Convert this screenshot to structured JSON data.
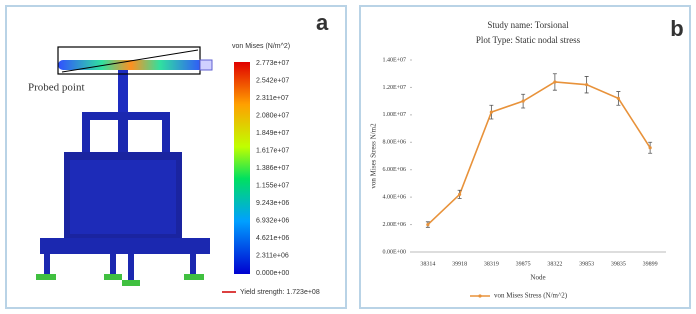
{
  "panel_a": {
    "label": "a",
    "annotation": "Probed point",
    "colorbar_title": "von Mises (N/m^2)",
    "colorbar_labels": [
      "2.773e+07",
      "2.542e+07",
      "2.311e+07",
      "2.080e+07",
      "1.849e+07",
      "1.617e+07",
      "1.386e+07",
      "1.155e+07",
      "9.243e+06",
      "6.932e+06",
      "4.621e+06",
      "2.311e+06",
      "0.000e+00"
    ],
    "yield_note": "Yield strength: 1.723e+08"
  },
  "chart_data": {
    "type": "line",
    "panel_label": "b",
    "title": "Study name: Torsional",
    "subtitle": "Plot Type: Static nodal stress",
    "x_label": "Node",
    "y_label": "von Mises Stress N/m2",
    "categories": [
      "38314",
      "39918",
      "38319",
      "39875",
      "38322",
      "39853",
      "39835",
      "39899"
    ],
    "series": [
      {
        "name": "von Mises Stress (N/m^2)",
        "color": "#e8923a",
        "values": [
          2000000,
          4200000,
          10200000,
          11000000,
          12400000,
          12200000,
          11200000,
          7600000
        ],
        "errors": [
          200000,
          300000,
          500000,
          500000,
          600000,
          600000,
          500000,
          400000
        ]
      }
    ],
    "ylim": [
      0,
      14000000
    ],
    "yticks": [
      {
        "value": 0,
        "label": "0.00E+00"
      },
      {
        "value": 2000000,
        "label": "2.00E+06"
      },
      {
        "value": 4000000,
        "label": "4.00E+06"
      },
      {
        "value": 6000000,
        "label": "6.00E+06"
      },
      {
        "value": 8000000,
        "label": "8.00E+06"
      },
      {
        "value": 10000000,
        "label": "1.00E+07"
      },
      {
        "value": 12000000,
        "label": "1.20E+07"
      },
      {
        "value": 14000000,
        "label": "1.40E+07"
      }
    ],
    "grid": false,
    "legend": "bottom"
  }
}
